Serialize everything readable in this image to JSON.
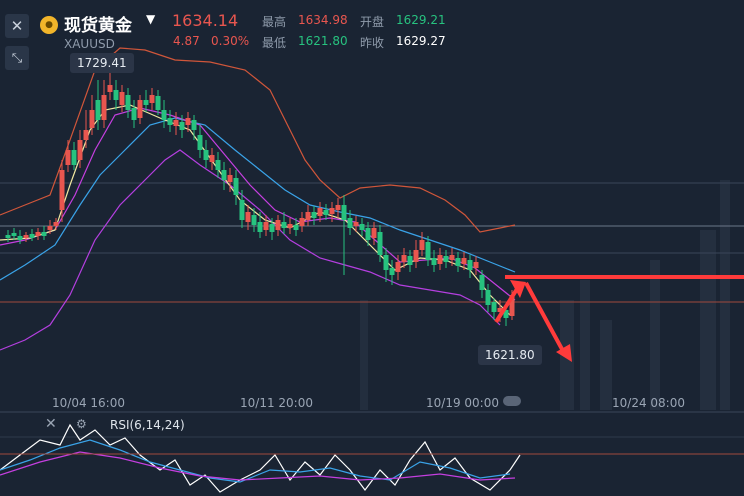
{
  "header": {
    "title": "现货黄金",
    "symbol": "XAUUSD",
    "price": "1634.14",
    "change": "4.87",
    "change_pct": "0.30%",
    "high_label": "最高",
    "high": "1634.98",
    "open_label": "开盘",
    "open": "1629.21",
    "low_label": "最低",
    "low": "1621.80",
    "prev_close_label": "昨收",
    "prev_close": "1629.27"
  },
  "chart": {
    "max_tag": "1729.41",
    "min_tag": "1621.80",
    "x_labels": [
      "10/04 16:00",
      "10/11 20:00",
      "10/19 00:00",
      "10/24 08:00"
    ]
  },
  "indicator": {
    "label": "RSI(6,14,24)"
  },
  "colors": {
    "up": "#e8564f",
    "down": "#27c27f",
    "background": "#1a2433",
    "ma_short": "#f2e8a0",
    "ma_mid": "#c53fe0",
    "ma_long": "#3aa3e8",
    "boll_upper": "#d0563a",
    "annotation": "#ff3b3b"
  }
}
